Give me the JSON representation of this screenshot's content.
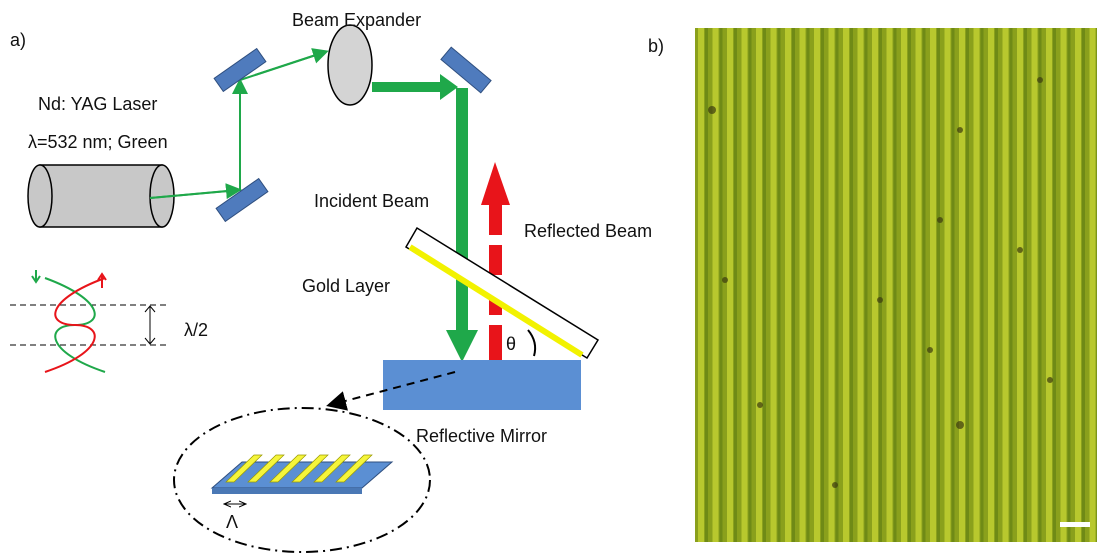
{
  "panel_a": {
    "label": "a)",
    "laser": {
      "name": "Nd: YAG Laser",
      "wavelength": "λ=532 nm; Green"
    },
    "beam_expander": "Beam Expander",
    "incident_beam": "Incident Beam",
    "reflected_beam": "Reflected Beam",
    "gold_layer": "Gold Layer",
    "angle": "θ",
    "mirror": "Reflective Mirror",
    "half_wavelength": "λ/2",
    "period": "Λ"
  },
  "panel_b": {
    "label": "b)"
  }
}
